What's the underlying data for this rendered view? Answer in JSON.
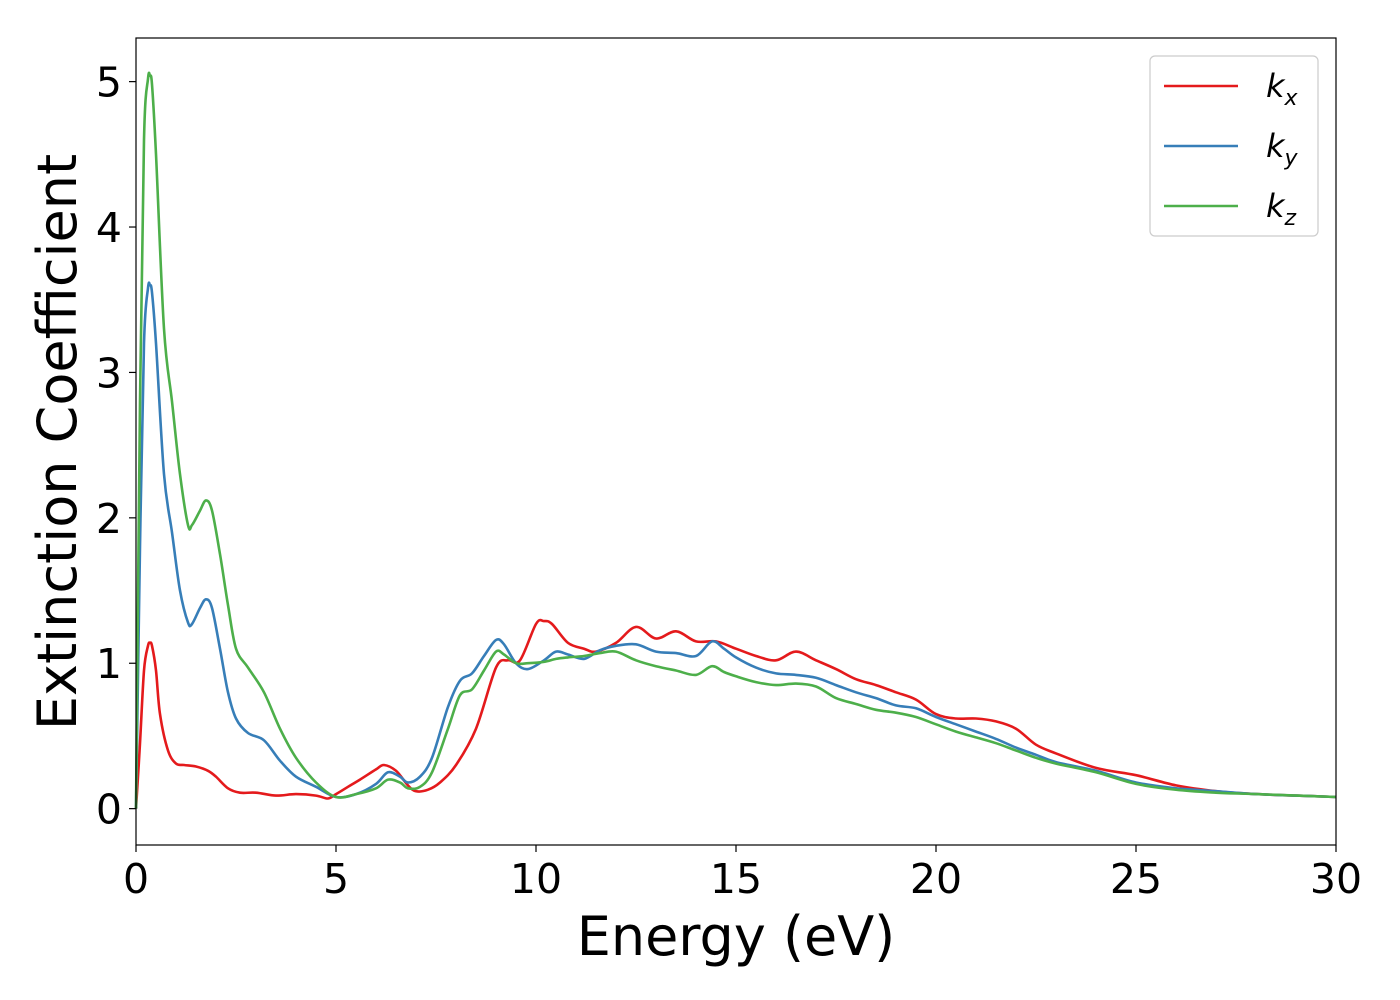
{
  "chart_data": {
    "type": "line",
    "xlabel": "Energy (eV)",
    "ylabel": "Extinction Coefficient",
    "xlim": [
      0,
      30
    ],
    "ylim": [
      -0.25,
      5.3
    ],
    "x_ticks": [
      0,
      5,
      10,
      15,
      20,
      25,
      30
    ],
    "y_ticks": [
      0,
      1,
      2,
      3,
      4,
      5
    ],
    "grid": false,
    "legend_position": "top-right",
    "series": [
      {
        "name": "kx",
        "label_base": "k",
        "label_sub": "x",
        "color": "#e41a1c",
        "x": [
          0,
          0.1,
          0.2,
          0.3,
          0.35,
          0.4,
          0.5,
          0.6,
          0.8,
          1.0,
          1.2,
          1.5,
          1.8,
          2.0,
          2.3,
          2.6,
          3.0,
          3.5,
          4.0,
          4.5,
          4.8,
          5.0,
          5.3,
          5.6,
          6.0,
          6.2,
          6.5,
          6.8,
          7.0,
          7.3,
          7.6,
          8.0,
          8.5,
          9.0,
          9.3,
          9.6,
          10.0,
          10.2,
          10.4,
          10.8,
          11.2,
          11.5,
          12.0,
          12.5,
          13.0,
          13.5,
          14.0,
          14.5,
          15.0,
          15.5,
          16.0,
          16.5,
          17.0,
          17.5,
          18.0,
          18.5,
          19.0,
          19.5,
          20.0,
          20.5,
          21.0,
          21.5,
          22.0,
          22.5,
          23.0,
          24.0,
          25.0,
          26.0,
          27.0,
          28.0,
          29.0,
          30.0
        ],
        "y": [
          0.0,
          0.45,
          0.95,
          1.12,
          1.14,
          1.12,
          0.95,
          0.65,
          0.4,
          0.31,
          0.3,
          0.29,
          0.26,
          0.22,
          0.14,
          0.11,
          0.11,
          0.09,
          0.1,
          0.09,
          0.07,
          0.1,
          0.15,
          0.2,
          0.27,
          0.3,
          0.26,
          0.16,
          0.12,
          0.13,
          0.18,
          0.3,
          0.55,
          0.97,
          1.02,
          1.02,
          1.27,
          1.29,
          1.27,
          1.14,
          1.1,
          1.08,
          1.14,
          1.25,
          1.17,
          1.22,
          1.15,
          1.15,
          1.1,
          1.05,
          1.02,
          1.08,
          1.02,
          0.96,
          0.89,
          0.85,
          0.8,
          0.75,
          0.65,
          0.62,
          0.62,
          0.6,
          0.55,
          0.44,
          0.38,
          0.28,
          0.23,
          0.16,
          0.12,
          0.1,
          0.09,
          0.08
        ]
      },
      {
        "name": "ky",
        "label_base": "k",
        "label_sub": "y",
        "color": "#377eb8",
        "x": [
          0,
          0.1,
          0.2,
          0.3,
          0.35,
          0.4,
          0.5,
          0.7,
          0.9,
          1.1,
          1.3,
          1.4,
          1.6,
          1.75,
          1.9,
          2.1,
          2.3,
          2.5,
          2.8,
          3.2,
          3.6,
          4.0,
          4.5,
          5.0,
          5.5,
          6.0,
          6.3,
          6.6,
          6.8,
          7.1,
          7.4,
          7.8,
          8.1,
          8.4,
          8.7,
          9.0,
          9.2,
          9.5,
          9.8,
          10.2,
          10.5,
          10.8,
          11.2,
          11.6,
          12.0,
          12.5,
          13.0,
          13.5,
          14.0,
          14.4,
          14.7,
          15.0,
          15.5,
          16.0,
          16.5,
          17.0,
          17.5,
          18.0,
          18.5,
          19.0,
          19.5,
          20.0,
          20.5,
          21.0,
          21.5,
          22.0,
          22.5,
          23.0,
          24.0,
          25.0,
          26.0,
          27.0,
          28.0,
          29.0,
          30.0
        ],
        "y": [
          0.0,
          1.8,
          3.2,
          3.58,
          3.6,
          3.55,
          3.2,
          2.3,
          1.9,
          1.5,
          1.28,
          1.27,
          1.38,
          1.44,
          1.38,
          1.1,
          0.8,
          0.62,
          0.52,
          0.47,
          0.33,
          0.22,
          0.15,
          0.08,
          0.1,
          0.17,
          0.25,
          0.22,
          0.18,
          0.22,
          0.35,
          0.7,
          0.88,
          0.93,
          1.05,
          1.16,
          1.13,
          1.0,
          0.96,
          1.02,
          1.08,
          1.06,
          1.03,
          1.09,
          1.12,
          1.13,
          1.08,
          1.07,
          1.05,
          1.15,
          1.1,
          1.04,
          0.97,
          0.93,
          0.92,
          0.9,
          0.85,
          0.8,
          0.76,
          0.71,
          0.69,
          0.63,
          0.58,
          0.53,
          0.48,
          0.42,
          0.37,
          0.32,
          0.26,
          0.18,
          0.14,
          0.12,
          0.1,
          0.09,
          0.08
        ]
      },
      {
        "name": "kz",
        "label_base": "k",
        "label_sub": "z",
        "color": "#4daf4a",
        "x": [
          0,
          0.1,
          0.2,
          0.3,
          0.35,
          0.4,
          0.5,
          0.7,
          0.9,
          1.1,
          1.3,
          1.4,
          1.6,
          1.75,
          1.9,
          2.1,
          2.3,
          2.5,
          2.8,
          3.2,
          3.6,
          4.0,
          4.5,
          5.0,
          5.5,
          6.0,
          6.3,
          6.6,
          6.8,
          7.1,
          7.4,
          7.8,
          8.1,
          8.4,
          8.7,
          9.0,
          9.2,
          9.5,
          9.8,
          10.2,
          10.5,
          10.8,
          11.2,
          11.6,
          12.0,
          12.5,
          13.0,
          13.5,
          14.0,
          14.4,
          14.7,
          15.0,
          15.5,
          16.0,
          16.5,
          17.0,
          17.5,
          18.0,
          18.5,
          19.0,
          19.5,
          20.0,
          20.5,
          21.0,
          21.5,
          22.0,
          22.5,
          23.0,
          24.0,
          25.0,
          26.0,
          27.0,
          28.0,
          29.0,
          30.0
        ],
        "y": [
          0.0,
          2.8,
          4.6,
          5.02,
          5.04,
          4.98,
          4.5,
          3.3,
          2.8,
          2.3,
          1.95,
          1.95,
          2.05,
          2.12,
          2.05,
          1.75,
          1.4,
          1.1,
          0.97,
          0.8,
          0.55,
          0.35,
          0.18,
          0.08,
          0.1,
          0.14,
          0.2,
          0.18,
          0.14,
          0.15,
          0.25,
          0.55,
          0.78,
          0.82,
          0.95,
          1.08,
          1.06,
          1.0,
          1.0,
          1.01,
          1.03,
          1.04,
          1.05,
          1.07,
          1.08,
          1.02,
          0.98,
          0.95,
          0.92,
          0.98,
          0.94,
          0.91,
          0.87,
          0.85,
          0.86,
          0.84,
          0.76,
          0.72,
          0.68,
          0.66,
          0.63,
          0.58,
          0.53,
          0.49,
          0.45,
          0.4,
          0.35,
          0.31,
          0.25,
          0.17,
          0.13,
          0.11,
          0.1,
          0.09,
          0.08
        ]
      }
    ]
  }
}
